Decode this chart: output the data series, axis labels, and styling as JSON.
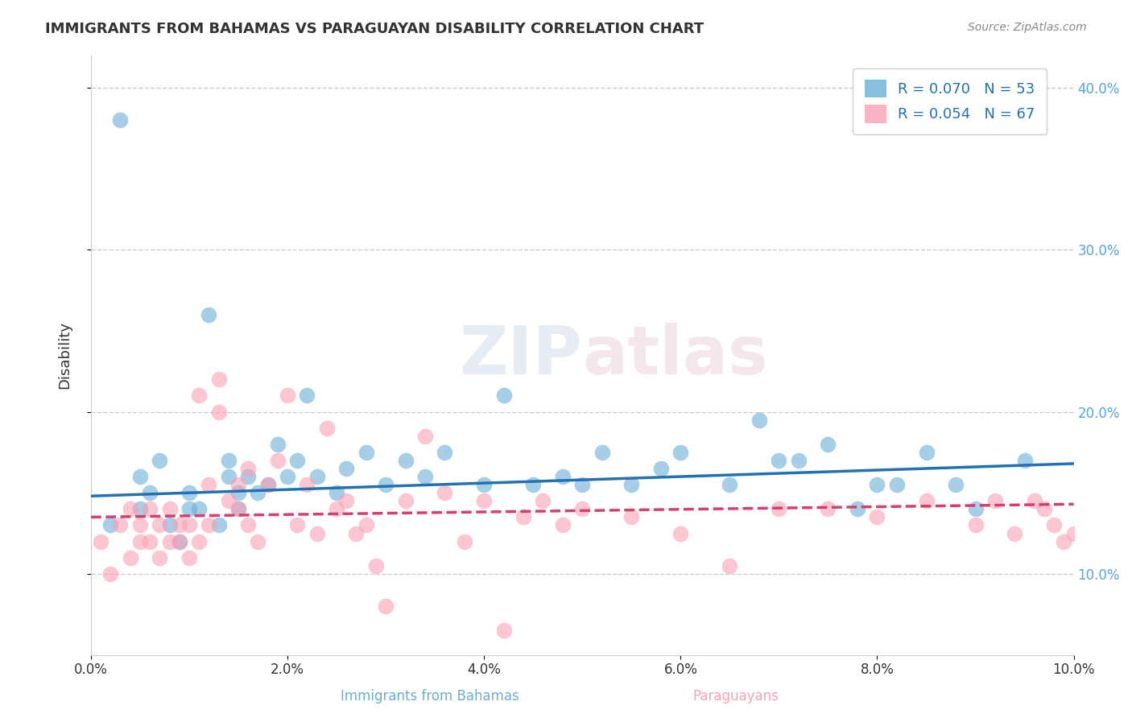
{
  "title": "IMMIGRANTS FROM BAHAMAS VS PARAGUAYAN DISABILITY CORRELATION CHART",
  "source": "Source: ZipAtlas.com",
  "xlabel_center": "Immigrants from Bahamas",
  "xlabel_right": "Paraguayans",
  "ylabel": "Disability",
  "xlim": [
    0,
    0.1
  ],
  "ylim": [
    0.05,
    0.42
  ],
  "yticks": [
    0.1,
    0.2,
    0.3,
    0.4
  ],
  "ytick_labels": [
    "10.0%",
    "20.0%",
    "30.0%",
    "40.0%"
  ],
  "xticks": [
    0.0,
    0.02,
    0.04,
    0.06,
    0.08,
    0.1
  ],
  "xtick_labels": [
    "0.0%",
    "2.0%",
    "4.0%",
    "6.0%",
    "8.0%",
    "10.0%"
  ],
  "blue_R": 0.07,
  "blue_N": 53,
  "pink_R": 0.054,
  "pink_N": 67,
  "blue_color": "#6baed6",
  "pink_color": "#fa9fb5",
  "blue_line_color": "#2171b5",
  "pink_line_color": "#d63e6e",
  "blue_scatter_x": [
    0.002,
    0.003,
    0.005,
    0.005,
    0.006,
    0.007,
    0.008,
    0.009,
    0.01,
    0.01,
    0.011,
    0.012,
    0.013,
    0.014,
    0.014,
    0.015,
    0.015,
    0.016,
    0.017,
    0.018,
    0.019,
    0.02,
    0.021,
    0.022,
    0.023,
    0.025,
    0.026,
    0.028,
    0.03,
    0.032,
    0.034,
    0.036,
    0.04,
    0.042,
    0.045,
    0.048,
    0.05,
    0.052,
    0.055,
    0.058,
    0.06,
    0.065,
    0.068,
    0.07,
    0.072,
    0.075,
    0.078,
    0.08,
    0.082,
    0.085,
    0.088,
    0.09,
    0.095
  ],
  "blue_scatter_y": [
    0.13,
    0.38,
    0.14,
    0.16,
    0.15,
    0.17,
    0.13,
    0.12,
    0.14,
    0.15,
    0.14,
    0.26,
    0.13,
    0.17,
    0.16,
    0.14,
    0.15,
    0.16,
    0.15,
    0.155,
    0.18,
    0.16,
    0.17,
    0.21,
    0.16,
    0.15,
    0.165,
    0.175,
    0.155,
    0.17,
    0.16,
    0.175,
    0.155,
    0.21,
    0.155,
    0.16,
    0.155,
    0.175,
    0.155,
    0.165,
    0.175,
    0.155,
    0.195,
    0.17,
    0.17,
    0.18,
    0.14,
    0.155,
    0.155,
    0.175,
    0.155,
    0.14,
    0.17
  ],
  "pink_scatter_x": [
    0.001,
    0.002,
    0.003,
    0.004,
    0.004,
    0.005,
    0.005,
    0.006,
    0.006,
    0.007,
    0.007,
    0.008,
    0.008,
    0.009,
    0.009,
    0.01,
    0.01,
    0.011,
    0.011,
    0.012,
    0.012,
    0.013,
    0.013,
    0.014,
    0.015,
    0.015,
    0.016,
    0.016,
    0.017,
    0.018,
    0.019,
    0.02,
    0.021,
    0.022,
    0.023,
    0.024,
    0.025,
    0.026,
    0.027,
    0.028,
    0.029,
    0.03,
    0.032,
    0.034,
    0.036,
    0.038,
    0.04,
    0.042,
    0.044,
    0.046,
    0.048,
    0.05,
    0.055,
    0.06,
    0.065,
    0.07,
    0.075,
    0.08,
    0.085,
    0.09,
    0.092,
    0.094,
    0.096,
    0.097,
    0.098,
    0.099,
    0.1
  ],
  "pink_scatter_y": [
    0.12,
    0.1,
    0.13,
    0.11,
    0.14,
    0.12,
    0.13,
    0.14,
    0.12,
    0.11,
    0.13,
    0.12,
    0.14,
    0.13,
    0.12,
    0.11,
    0.13,
    0.21,
    0.12,
    0.155,
    0.13,
    0.2,
    0.22,
    0.145,
    0.155,
    0.14,
    0.165,
    0.13,
    0.12,
    0.155,
    0.17,
    0.21,
    0.13,
    0.155,
    0.125,
    0.19,
    0.14,
    0.145,
    0.125,
    0.13,
    0.105,
    0.08,
    0.145,
    0.185,
    0.15,
    0.12,
    0.145,
    0.065,
    0.135,
    0.145,
    0.13,
    0.14,
    0.135,
    0.125,
    0.105,
    0.14,
    0.14,
    0.135,
    0.145,
    0.13,
    0.145,
    0.125,
    0.145,
    0.14,
    0.13,
    0.12,
    0.125
  ],
  "blue_trend_x": [
    0.0,
    0.1
  ],
  "blue_trend_y": [
    0.148,
    0.168
  ],
  "pink_trend_x": [
    0.0,
    0.1
  ],
  "pink_trend_y": [
    0.135,
    0.143
  ],
  "watermark_zip": "ZIP",
  "watermark_atlas": "atlas",
  "background_color": "#ffffff",
  "grid_color": "#cccccc",
  "title_color": "#333333",
  "axis_color": "#333333",
  "legend_blue_label": "R = 0.070   N = 53",
  "legend_pink_label": "R = 0.054   N = 67",
  "right_tick_color": "#5ba3d9"
}
